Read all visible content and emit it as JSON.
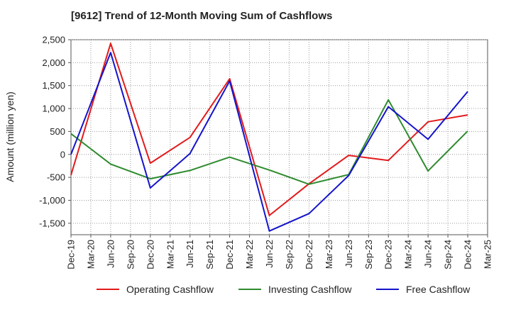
{
  "header": {
    "title": "[9612]  Trend of 12-Month Moving Sum of Cashflows"
  },
  "chart_data": {
    "type": "line",
    "title": "[9612]  Trend of 12-Month Moving Sum of Cashflows",
    "xlabel": "",
    "ylabel": "Amount (million yen)",
    "categories": [
      "Dec-19",
      "Mar-20",
      "Jun-20",
      "Sep-20",
      "Dec-20",
      "Mar-21",
      "Jun-21",
      "Sep-21",
      "Dec-21",
      "Mar-22",
      "Jun-22",
      "Sep-22",
      "Dec-22",
      "Mar-23",
      "Jun-23",
      "Sep-23",
      "Dec-23",
      "Mar-24",
      "Jun-24",
      "Sep-24",
      "Dec-24",
      "Mar-25"
    ],
    "ylim": [
      -1750,
      2500
    ],
    "yticks": [
      2500,
      2000,
      1500,
      1000,
      500,
      0,
      -500,
      -1000,
      -1500
    ],
    "ytick_labels": [
      "2,500",
      "2,000",
      "1,500",
      "1,000",
      "500",
      "0",
      "-500",
      "-1,000",
      "-1,500"
    ],
    "grid": true,
    "legend_position": "bottom",
    "series": [
      {
        "name": "Operating Cashflow",
        "color": "#e31a1c",
        "x": [
          "Dec-19",
          "Jun-20",
          "Dec-20",
          "Jun-21",
          "Dec-21",
          "Jun-22",
          "Dec-22",
          "Jun-23",
          "Dec-23",
          "Jun-24",
          "Dec-24"
        ],
        "values": [
          -450,
          2420,
          -190,
          370,
          1650,
          -1330,
          -640,
          -20,
          -130,
          710,
          860
        ]
      },
      {
        "name": "Investing Cashflow",
        "color": "#2e8b2e",
        "x": [
          "Dec-19",
          "Jun-20",
          "Dec-20",
          "Jun-21",
          "Dec-21",
          "Jun-22",
          "Dec-22",
          "Jun-23",
          "Dec-23",
          "Jun-24",
          "Dec-24"
        ],
        "values": [
          450,
          -210,
          -530,
          -350,
          -60,
          -340,
          -650,
          -440,
          1190,
          -360,
          510
        ]
      },
      {
        "name": "Free Cashflow",
        "color": "#1414cc",
        "x": [
          "Dec-19",
          "Jun-20",
          "Dec-20",
          "Jun-21",
          "Dec-21",
          "Jun-22",
          "Dec-22",
          "Jun-23",
          "Dec-23",
          "Jun-24",
          "Dec-24"
        ],
        "values": [
          0,
          2220,
          -730,
          20,
          1600,
          -1670,
          -1290,
          -460,
          1040,
          330,
          1370
        ]
      }
    ]
  }
}
